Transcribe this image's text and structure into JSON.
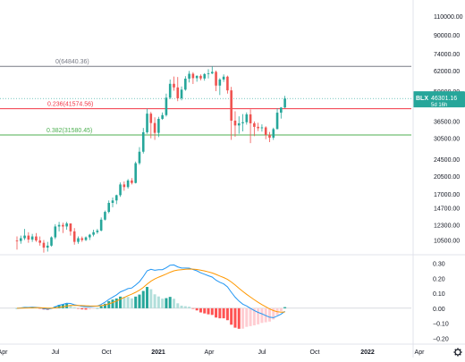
{
  "chart_data": {
    "type": "candlestick",
    "scale": "log",
    "grid": false,
    "price_axis": {
      "ticks": [
        110000,
        90000,
        74000,
        62000,
        50000,
        36500,
        30500,
        24500,
        20500,
        17000,
        14700,
        12300,
        10500
      ],
      "tick_labels": [
        "110000.00",
        "90000.00",
        "74000.00",
        "62000.00",
        "50000.00",
        "36500.00",
        "30500.00",
        "24500.00",
        "20500.00",
        "17000.00",
        "14700.00",
        "12300.00",
        "10500.00"
      ],
      "range": [
        9000,
        130000
      ]
    },
    "time_axis": {
      "labels": [
        "Apr",
        "Jul",
        "Oct",
        "2021",
        "Apr",
        "Jul",
        "Oct",
        "2022",
        "Apr"
      ],
      "bold": [
        "2021",
        "2022"
      ]
    },
    "symbol_badge": {
      "ticker": "BLX",
      "price": "46301.16",
      "countdown": "5d 16h",
      "value": 46301.16,
      "color": "#26a69a"
    },
    "fib_levels": [
      {
        "text": "0(64840.36)",
        "value": 64840.36,
        "color": "#787b86"
      },
      {
        "text": "0.236(41574.56)",
        "value": 41574.56,
        "color": "#f23645"
      },
      {
        "text": "0.382(31580.45)",
        "value": 31580.45,
        "color": "#4caf50"
      }
    ],
    "colors": {
      "up": "#26a69a",
      "down": "#ef5350",
      "macd": "#2196f3",
      "signal": "#ff9800"
    },
    "candles": [
      [
        10450,
        10900,
        9500,
        10400
      ],
      [
        10400,
        11000,
        10100,
        10700
      ],
      [
        10700,
        11800,
        10500,
        11000
      ],
      [
        11000,
        11400,
        10200,
        10550
      ],
      [
        10550,
        11200,
        10300,
        10900
      ],
      [
        10900,
        11300,
        10300,
        10450
      ],
      [
        10450,
        10900,
        9900,
        10200
      ],
      [
        10200,
        10500,
        9200,
        9700
      ],
      [
        9700,
        10300,
        9300,
        9900
      ],
      [
        9900,
        10900,
        9800,
        10800
      ],
      [
        10800,
        12400,
        10600,
        12100
      ],
      [
        12100,
        12700,
        11500,
        12300
      ],
      [
        12300,
        12600,
        11300,
        12100
      ],
      [
        12100,
        12700,
        11700,
        12500
      ],
      [
        12500,
        12400,
        11000,
        11500
      ],
      [
        11500,
        11900,
        10000,
        10300
      ],
      [
        10300,
        10900,
        10100,
        10700
      ],
      [
        10700,
        10900,
        10300,
        10500
      ],
      [
        10500,
        10900,
        10400,
        10800
      ],
      [
        10800,
        11200,
        10500,
        11100
      ],
      [
        11100,
        11700,
        10900,
        11400
      ],
      [
        11400,
        11800,
        11200,
        11600
      ],
      [
        11600,
        13300,
        11500,
        13000
      ],
      [
        13000,
        14300,
        12900,
        14100
      ],
      [
        14100,
        15900,
        13900,
        15500
      ],
      [
        15500,
        16400,
        14800,
        15900
      ],
      [
        15900,
        16900,
        15300,
        16800
      ],
      [
        16800,
        19200,
        16500,
        18800
      ],
      [
        18800,
        19400,
        17600,
        18300
      ],
      [
        18300,
        19900,
        18000,
        19600
      ],
      [
        19600,
        20100,
        18800,
        19100
      ],
      [
        19100,
        23900,
        19000,
        23500
      ],
      [
        23500,
        27800,
        23100,
        26500
      ],
      [
        26500,
        34000,
        26000,
        32500
      ],
      [
        32500,
        41600,
        32000,
        39500
      ],
      [
        39500,
        40200,
        30500,
        35800
      ],
      [
        35800,
        38000,
        30000,
        32300
      ],
      [
        32300,
        38200,
        30900,
        37400
      ],
      [
        37400,
        40000,
        37000,
        38900
      ],
      [
        38900,
        48700,
        38300,
        46700
      ],
      [
        46700,
        56500,
        46000,
        54000
      ],
      [
        54000,
        58300,
        50200,
        52000
      ],
      [
        52000,
        58000,
        45000,
        46400
      ],
      [
        46400,
        52500,
        45400,
        50800
      ],
      [
        50800,
        58500,
        50200,
        57000
      ],
      [
        57000,
        61800,
        54800,
        60000
      ],
      [
        60000,
        61000,
        53900,
        57300
      ],
      [
        57300,
        59000,
        55200,
        58700
      ],
      [
        58700,
        59600,
        56000,
        57100
      ],
      [
        57100,
        60400,
        55800,
        59800
      ],
      [
        59800,
        63000,
        57100,
        60200
      ],
      [
        60200,
        64800,
        59800,
        61200
      ],
      [
        61200,
        62000,
        50000,
        53000
      ],
      [
        53000,
        57300,
        48000,
        56500
      ],
      [
        56500,
        59600,
        55100,
        58200
      ],
      [
        58200,
        58800,
        48700,
        50400
      ],
      [
        50400,
        52300,
        30000,
        36700
      ],
      [
        36700,
        40500,
        31000,
        34900
      ],
      [
        34900,
        38400,
        32000,
        35700
      ],
      [
        35700,
        39300,
        32800,
        36100
      ],
      [
        36100,
        40000,
        35200,
        39200
      ],
      [
        39200,
        41300,
        29000,
        35700
      ],
      [
        35700,
        36400,
        31200,
        34400
      ],
      [
        34400,
        35900,
        32900,
        33900
      ],
      [
        33900,
        35300,
        32700,
        34200
      ],
      [
        34200,
        34600,
        30200,
        31600
      ],
      [
        31600,
        32600,
        29300,
        30700
      ],
      [
        30700,
        34100,
        30000,
        33600
      ],
      [
        33600,
        41800,
        33500,
        39900
      ],
      [
        39900,
        42300,
        37500,
        42100
      ],
      [
        42100,
        47600,
        41900,
        46301
      ]
    ],
    "macd": {
      "ticks": [
        0.3,
        0.2,
        0.1,
        0.0,
        -0.1,
        -0.2
      ],
      "tick_labels": [
        "0.30",
        "0.20",
        "0.10",
        "0.00",
        "−0.10",
        "−0.20"
      ],
      "range": [
        -0.24,
        0.34
      ]
    }
  }
}
